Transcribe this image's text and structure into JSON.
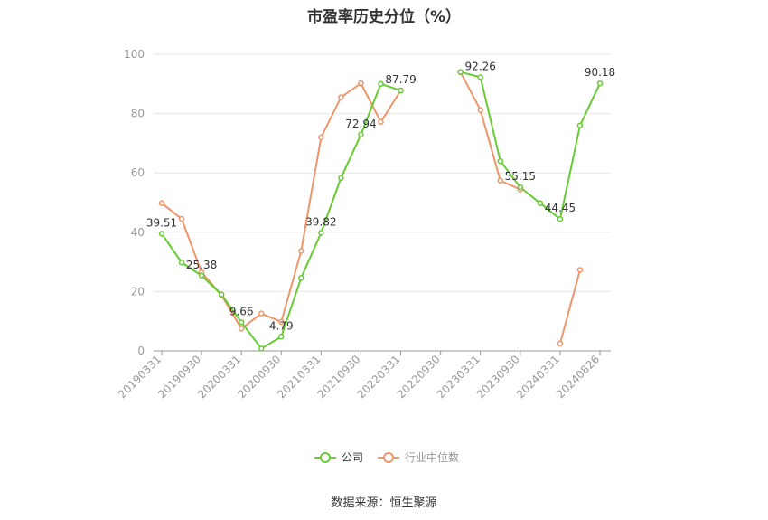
{
  "chart_data": {
    "type": "line",
    "title": "市盈率历史分位（%）",
    "source": "数据来源：恒生聚源",
    "ylim": [
      0,
      100
    ],
    "yticks": [
      0,
      20,
      40,
      60,
      80,
      100
    ],
    "xtick_labels": [
      "20190331",
      "20190930",
      "20200331",
      "20200930",
      "20210331",
      "20210930",
      "20220331",
      "20220930",
      "20230331",
      "20230930",
      "20240331",
      "20240826"
    ],
    "grid": true,
    "legend_position": "bottom",
    "series": [
      {
        "name": "公司",
        "color": "#66cc33",
        "values": [
          39.51,
          29.8,
          25.38,
          19.0,
          9.66,
          0.8,
          4.79,
          24.6,
          39.82,
          58.3,
          72.94,
          90.0,
          87.79,
          null,
          null,
          94.0,
          92.26,
          64.0,
          55.15,
          49.8,
          44.45,
          76.0,
          90.18
        ],
        "labels": {
          "0": "39.51",
          "2": "25.38",
          "4": "9.66",
          "6": "4.79",
          "8": "39.82",
          "10": "72.94",
          "12": "87.79",
          "16": "92.26",
          "18": "55.15",
          "20": "44.45",
          "22": "90.18"
        }
      },
      {
        "name": "行业中位数",
        "color": "#f0956a",
        "values": [
          49.8,
          44.5,
          26.5,
          18.8,
          7.5,
          12.6,
          9.8,
          33.7,
          72.0,
          85.5,
          90.2,
          77.2,
          87.8,
          null,
          null,
          94.0,
          81.2,
          57.4,
          54.4,
          null,
          2.5,
          27.3,
          null
        ]
      }
    ]
  }
}
